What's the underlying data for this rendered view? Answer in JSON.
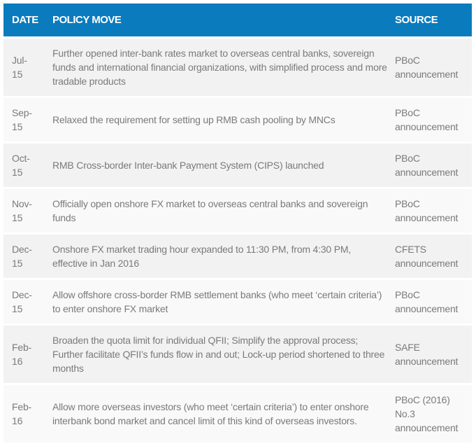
{
  "colors": {
    "header_bg": "#0a7bbd",
    "row_odd": "#f2f2f2",
    "row_even": "#f9f9f9",
    "text": "#7a7a7a"
  },
  "header": {
    "date": "DATE",
    "policy": "POLICY MOVE",
    "source": "SOURCE"
  },
  "rows": [
    {
      "date": "Jul-\n15",
      "policy": "Further opened inter-bank rates market to overseas central banks, sovereign funds and international financial organizations, with simplified process and more tradable products",
      "source": "PBoC announcement"
    },
    {
      "date": "Sep-\n15",
      "policy": "Relaxed the requirement for setting up RMB cash pooling by MNCs",
      "source": "PBoC announcement"
    },
    {
      "date": "Oct-\n15",
      "policy": "RMB Cross-border Inter-bank Payment System (CIPS) launched",
      "source": "PBoC announcement"
    },
    {
      "date": "Nov-\n15",
      "policy": "Officially open onshore FX market to overseas central banks and sovereign funds",
      "source": "PBoC announcement"
    },
    {
      "date": "Dec-\n15",
      "policy": "Onshore FX market trading hour expanded to 11:30 PM, from 4:30 PM, effective in Jan 2016",
      "source": "CFETS announcement"
    },
    {
      "date": "Dec-\n15",
      "policy": "Allow offshore cross-border RMB settlement banks (who meet ‘certain criteria’) to enter onshore FX market",
      "source": "PBoC announcement"
    },
    {
      "date": "Feb-\n16",
      "policy": "Broaden the quota limit for individual QFII; Simplify the approval process; Further facilitate QFII’s funds flow in and out; Lock-up period shortened to three months",
      "source": "SAFE announcement"
    },
    {
      "date": "Feb-\n16",
      "policy": "Allow more overseas investors (who meet ‘certain criteria’) to enter onshore interbank bond market and cancel limit of this kind of overseas investors.",
      "source": "PBoC (2016) No.3 announcement"
    }
  ]
}
